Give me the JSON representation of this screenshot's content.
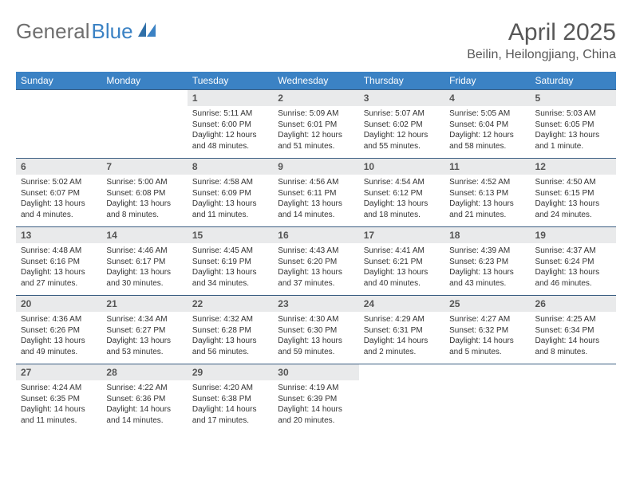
{
  "logo": {
    "part1": "General",
    "part2": "Blue"
  },
  "title": "April 2025",
  "location": "Beilin, Heilongjiang, China",
  "colors": {
    "header_bg": "#3b82c4",
    "header_fg": "#ffffff",
    "daynum_bg": "#e9eaeb",
    "daynum_fg": "#555555",
    "text": "#333333",
    "logo_gray": "#6f6f6f",
    "logo_blue": "#3b82c4",
    "border_top": "#3b5e82"
  },
  "weekdays": [
    "Sunday",
    "Monday",
    "Tuesday",
    "Wednesday",
    "Thursday",
    "Friday",
    "Saturday"
  ],
  "weeks": [
    [
      null,
      null,
      {
        "n": "1",
        "sunrise": "Sunrise: 5:11 AM",
        "sunset": "Sunset: 6:00 PM",
        "daylight": "Daylight: 12 hours and 48 minutes."
      },
      {
        "n": "2",
        "sunrise": "Sunrise: 5:09 AM",
        "sunset": "Sunset: 6:01 PM",
        "daylight": "Daylight: 12 hours and 51 minutes."
      },
      {
        "n": "3",
        "sunrise": "Sunrise: 5:07 AM",
        "sunset": "Sunset: 6:02 PM",
        "daylight": "Daylight: 12 hours and 55 minutes."
      },
      {
        "n": "4",
        "sunrise": "Sunrise: 5:05 AM",
        "sunset": "Sunset: 6:04 PM",
        "daylight": "Daylight: 12 hours and 58 minutes."
      },
      {
        "n": "5",
        "sunrise": "Sunrise: 5:03 AM",
        "sunset": "Sunset: 6:05 PM",
        "daylight": "Daylight: 13 hours and 1 minute."
      }
    ],
    [
      {
        "n": "6",
        "sunrise": "Sunrise: 5:02 AM",
        "sunset": "Sunset: 6:07 PM",
        "daylight": "Daylight: 13 hours and 4 minutes."
      },
      {
        "n": "7",
        "sunrise": "Sunrise: 5:00 AM",
        "sunset": "Sunset: 6:08 PM",
        "daylight": "Daylight: 13 hours and 8 minutes."
      },
      {
        "n": "8",
        "sunrise": "Sunrise: 4:58 AM",
        "sunset": "Sunset: 6:09 PM",
        "daylight": "Daylight: 13 hours and 11 minutes."
      },
      {
        "n": "9",
        "sunrise": "Sunrise: 4:56 AM",
        "sunset": "Sunset: 6:11 PM",
        "daylight": "Daylight: 13 hours and 14 minutes."
      },
      {
        "n": "10",
        "sunrise": "Sunrise: 4:54 AM",
        "sunset": "Sunset: 6:12 PM",
        "daylight": "Daylight: 13 hours and 18 minutes."
      },
      {
        "n": "11",
        "sunrise": "Sunrise: 4:52 AM",
        "sunset": "Sunset: 6:13 PM",
        "daylight": "Daylight: 13 hours and 21 minutes."
      },
      {
        "n": "12",
        "sunrise": "Sunrise: 4:50 AM",
        "sunset": "Sunset: 6:15 PM",
        "daylight": "Daylight: 13 hours and 24 minutes."
      }
    ],
    [
      {
        "n": "13",
        "sunrise": "Sunrise: 4:48 AM",
        "sunset": "Sunset: 6:16 PM",
        "daylight": "Daylight: 13 hours and 27 minutes."
      },
      {
        "n": "14",
        "sunrise": "Sunrise: 4:46 AM",
        "sunset": "Sunset: 6:17 PM",
        "daylight": "Daylight: 13 hours and 30 minutes."
      },
      {
        "n": "15",
        "sunrise": "Sunrise: 4:45 AM",
        "sunset": "Sunset: 6:19 PM",
        "daylight": "Daylight: 13 hours and 34 minutes."
      },
      {
        "n": "16",
        "sunrise": "Sunrise: 4:43 AM",
        "sunset": "Sunset: 6:20 PM",
        "daylight": "Daylight: 13 hours and 37 minutes."
      },
      {
        "n": "17",
        "sunrise": "Sunrise: 4:41 AM",
        "sunset": "Sunset: 6:21 PM",
        "daylight": "Daylight: 13 hours and 40 minutes."
      },
      {
        "n": "18",
        "sunrise": "Sunrise: 4:39 AM",
        "sunset": "Sunset: 6:23 PM",
        "daylight": "Daylight: 13 hours and 43 minutes."
      },
      {
        "n": "19",
        "sunrise": "Sunrise: 4:37 AM",
        "sunset": "Sunset: 6:24 PM",
        "daylight": "Daylight: 13 hours and 46 minutes."
      }
    ],
    [
      {
        "n": "20",
        "sunrise": "Sunrise: 4:36 AM",
        "sunset": "Sunset: 6:26 PM",
        "daylight": "Daylight: 13 hours and 49 minutes."
      },
      {
        "n": "21",
        "sunrise": "Sunrise: 4:34 AM",
        "sunset": "Sunset: 6:27 PM",
        "daylight": "Daylight: 13 hours and 53 minutes."
      },
      {
        "n": "22",
        "sunrise": "Sunrise: 4:32 AM",
        "sunset": "Sunset: 6:28 PM",
        "daylight": "Daylight: 13 hours and 56 minutes."
      },
      {
        "n": "23",
        "sunrise": "Sunrise: 4:30 AM",
        "sunset": "Sunset: 6:30 PM",
        "daylight": "Daylight: 13 hours and 59 minutes."
      },
      {
        "n": "24",
        "sunrise": "Sunrise: 4:29 AM",
        "sunset": "Sunset: 6:31 PM",
        "daylight": "Daylight: 14 hours and 2 minutes."
      },
      {
        "n": "25",
        "sunrise": "Sunrise: 4:27 AM",
        "sunset": "Sunset: 6:32 PM",
        "daylight": "Daylight: 14 hours and 5 minutes."
      },
      {
        "n": "26",
        "sunrise": "Sunrise: 4:25 AM",
        "sunset": "Sunset: 6:34 PM",
        "daylight": "Daylight: 14 hours and 8 minutes."
      }
    ],
    [
      {
        "n": "27",
        "sunrise": "Sunrise: 4:24 AM",
        "sunset": "Sunset: 6:35 PM",
        "daylight": "Daylight: 14 hours and 11 minutes."
      },
      {
        "n": "28",
        "sunrise": "Sunrise: 4:22 AM",
        "sunset": "Sunset: 6:36 PM",
        "daylight": "Daylight: 14 hours and 14 minutes."
      },
      {
        "n": "29",
        "sunrise": "Sunrise: 4:20 AM",
        "sunset": "Sunset: 6:38 PM",
        "daylight": "Daylight: 14 hours and 17 minutes."
      },
      {
        "n": "30",
        "sunrise": "Sunrise: 4:19 AM",
        "sunset": "Sunset: 6:39 PM",
        "daylight": "Daylight: 14 hours and 20 minutes."
      },
      null,
      null,
      null
    ]
  ]
}
